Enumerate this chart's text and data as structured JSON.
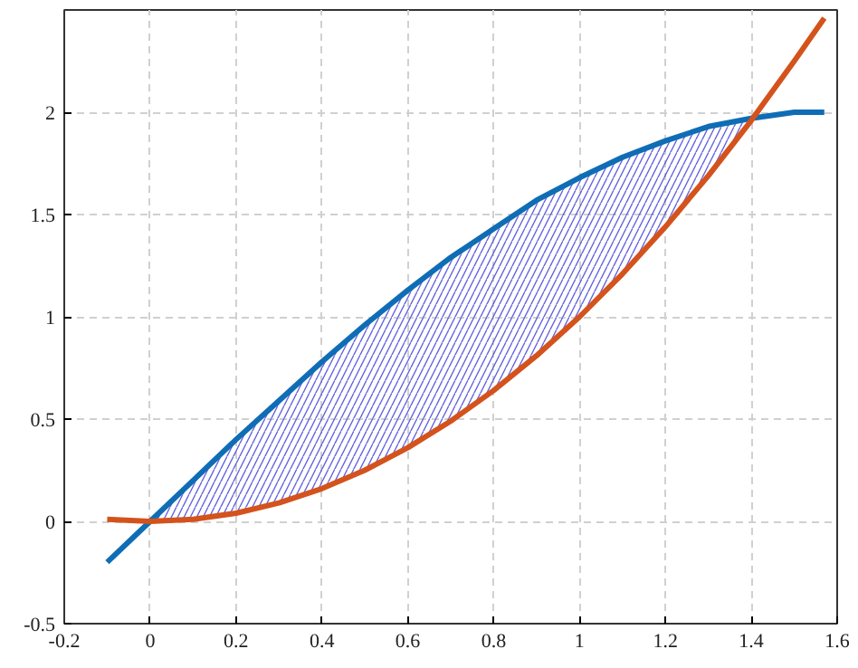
{
  "chart_data": {
    "type": "line",
    "xlim": [
      -0.2,
      1.6
    ],
    "ylim": [
      -0.5,
      2.5
    ],
    "xticks": [
      -0.2,
      0,
      0.2,
      0.4,
      0.6,
      0.8,
      1,
      1.2,
      1.4,
      1.6
    ],
    "yticks": [
      -0.5,
      0,
      0.5,
      1,
      1.5,
      2
    ],
    "grid": true,
    "line_style": "solid",
    "series": [
      {
        "color": "#0f6db5",
        "x": [
          -0.1,
          0,
          0.1,
          0.2,
          0.3,
          0.4,
          0.5,
          0.6,
          0.7,
          0.8,
          0.9,
          1.0,
          1.1,
          1.2,
          1.3,
          1.4,
          1.5,
          1.57
        ],
        "values": [
          -0.2,
          0,
          0.2,
          0.4,
          0.59,
          0.78,
          0.96,
          1.13,
          1.29,
          1.43,
          1.57,
          1.68,
          1.78,
          1.86,
          1.93,
          1.97,
          2.0,
          2.0
        ],
        "lower": [
          null,
          0,
          0.01,
          0.04,
          0.09,
          0.16,
          0.25,
          0.36,
          0.49,
          0.64,
          0.81,
          1.0,
          1.21,
          1.44,
          1.69,
          1.96,
          null,
          null
        ],
        "upper": [
          null,
          0,
          0.2,
          0.4,
          0.59,
          0.78,
          0.96,
          1.13,
          1.29,
          1.43,
          1.57,
          1.68,
          1.78,
          1.86,
          1.93,
          1.97,
          null,
          null
        ]
      },
      {
        "color": "#d4521c",
        "x": [
          -0.1,
          0,
          0.1,
          0.2,
          0.3,
          0.4,
          0.5,
          0.6,
          0.7,
          0.8,
          0.9,
          1.0,
          1.1,
          1.2,
          1.3,
          1.4,
          1.5,
          1.57
        ],
        "values": [
          0.01,
          0,
          0.01,
          0.04,
          0.09,
          0.16,
          0.25,
          0.36,
          0.49,
          0.64,
          0.81,
          1.0,
          1.21,
          1.44,
          1.69,
          1.96,
          2.25,
          2.46
        ]
      }
    ]
  }
}
